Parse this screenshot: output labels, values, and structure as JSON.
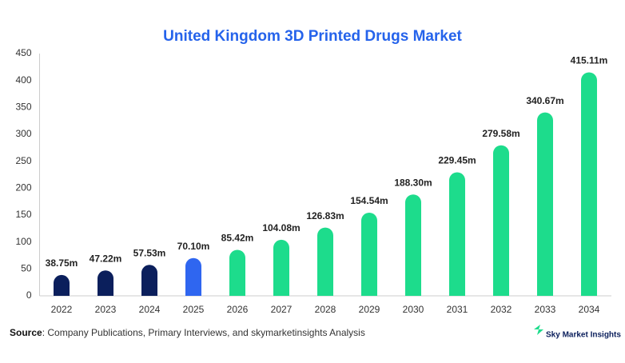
{
  "chart_data": {
    "type": "bar",
    "title": "United Kingdom 3D Printed Drugs Market",
    "categories": [
      "2022",
      "2023",
      "2024",
      "2025",
      "2026",
      "2027",
      "2028",
      "2029",
      "2030",
      "2031",
      "2032",
      "2033",
      "2034"
    ],
    "values": [
      38.75,
      47.22,
      57.53,
      70.1,
      85.42,
      104.08,
      126.83,
      154.54,
      188.3,
      229.45,
      279.58,
      340.67,
      415.11
    ],
    "value_labels": [
      "38.75m",
      "47.22m",
      "57.53m",
      "70.10m",
      "85.42m",
      "104.08m",
      "126.83m",
      "154.54m",
      "188.30m",
      "229.45m",
      "279.58m",
      "340.67m",
      "415.11m"
    ],
    "colors": [
      "#0b1f5c",
      "#0b1f5c",
      "#0b1f5c",
      "#2f66f0",
      "#1ddc8c",
      "#1ddc8c",
      "#1ddc8c",
      "#1ddc8c",
      "#1ddc8c",
      "#1ddc8c",
      "#1ddc8c",
      "#1ddc8c",
      "#1ddc8c"
    ],
    "ylim": [
      0,
      450
    ],
    "yticks": [
      0,
      50,
      100,
      150,
      200,
      250,
      300,
      350,
      400,
      450
    ],
    "grid": false,
    "source_label": "Source",
    "source_text": ": Company Publications, Primary Interviews, and skymarketinsights Analysis",
    "brand": "Sky Market Insights"
  }
}
